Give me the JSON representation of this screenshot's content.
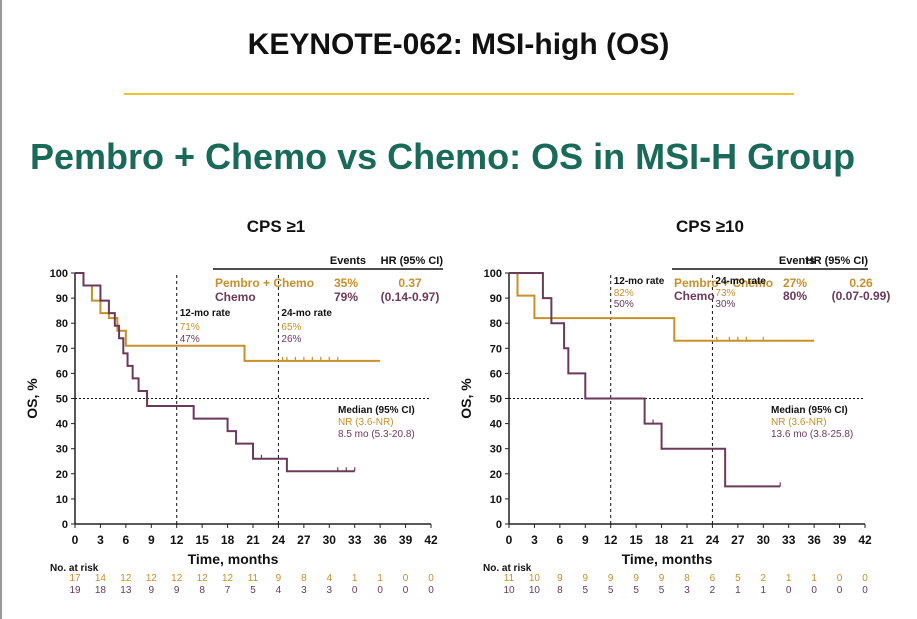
{
  "slide": {
    "title": "KEYNOTE-062: MSI-high (OS)",
    "subtitle": "Pembro + Chemo vs Chemo: OS in MSI-H Group"
  },
  "colors": {
    "pembro_chemo": "#c8902a",
    "chemo": "#6b3a5a",
    "subtitle": "#1a6a5a",
    "rule": "#f2c233"
  },
  "chart_data": [
    {
      "type": "line",
      "subtype": "kaplan-meier",
      "title": "CPS ≥1",
      "xlabel": "Time, months",
      "ylabel": "OS, %",
      "xlim": [
        0,
        42
      ],
      "ylim": [
        0,
        100
      ],
      "x_ticks": [
        0,
        3,
        6,
        9,
        12,
        15,
        18,
        21,
        24,
        27,
        30,
        33,
        36,
        39,
        42
      ],
      "y_ticks": [
        0,
        10,
        20,
        30,
        40,
        50,
        60,
        70,
        80,
        90,
        100
      ],
      "grid": false,
      "reference_lines": {
        "median_y": 50,
        "landmark_x": [
          12,
          24
        ]
      },
      "legend_header": {
        "events": "Events",
        "hr": "HR (95% CI)"
      },
      "series": [
        {
          "name": "Pembro + Chemo",
          "color": "#c8902a",
          "events": "35%",
          "hr": "0.37",
          "hr_ci": "",
          "median": "NR (3.6-NR)",
          "x": [
            0,
            1,
            2,
            3,
            4,
            5,
            6,
            20,
            36
          ],
          "y": [
            100,
            95,
            89,
            84,
            82,
            77,
            71,
            65,
            65
          ],
          "censor_x": [
            24.5,
            25,
            26,
            27,
            28,
            29,
            30,
            31
          ]
        },
        {
          "name": "Chemo",
          "color": "#6b3a5a",
          "events": "79%",
          "hr": "",
          "hr_ci": "(0.14-0.97)",
          "median": "8.5 mo (5.3-20.8)",
          "x": [
            0,
            1,
            3,
            4,
            4.7,
            5.2,
            5.7,
            6.2,
            6.8,
            7.5,
            8.5,
            12,
            14,
            18,
            19,
            21,
            25,
            33
          ],
          "y": [
            100,
            95,
            89,
            84,
            79,
            74,
            68,
            63,
            58,
            53,
            47,
            47,
            42,
            37,
            32,
            26,
            21,
            21
          ],
          "censor_x": [
            22,
            31,
            32,
            33
          ]
        }
      ],
      "landmarks": [
        {
          "x": 12,
          "label": "12-mo rate",
          "values": [
            "71%",
            "47%"
          ]
        },
        {
          "x": 24,
          "label": "24-mo rate",
          "values": [
            "65%",
            "26%"
          ]
        }
      ],
      "median_label": "Median (95% CI)",
      "risk_table": {
        "label": "No. at risk",
        "rows": [
          [
            "17",
            "14",
            "12",
            "12",
            "12",
            "12",
            "12",
            "11",
            "9",
            "8",
            "4",
            "1",
            "1",
            "0",
            "0"
          ],
          [
            "19",
            "18",
            "13",
            "9",
            "9",
            "8",
            "7",
            "5",
            "4",
            "3",
            "3",
            "0",
            "0",
            "0",
            "0"
          ]
        ]
      }
    },
    {
      "type": "line",
      "subtype": "kaplan-meier",
      "title": "CPS ≥10",
      "xlabel": "Time, months",
      "ylabel": "OS, %",
      "xlim": [
        0,
        42
      ],
      "ylim": [
        0,
        100
      ],
      "x_ticks": [
        0,
        3,
        6,
        9,
        12,
        15,
        18,
        21,
        24,
        27,
        30,
        33,
        36,
        39,
        42
      ],
      "y_ticks": [
        0,
        10,
        20,
        30,
        40,
        50,
        60,
        70,
        80,
        90,
        100
      ],
      "grid": false,
      "reference_lines": {
        "median_y": 50,
        "landmark_x": [
          12,
          24
        ]
      },
      "legend_header": {
        "events": "Events",
        "hr": "HR (95% CI)"
      },
      "series": [
        {
          "name": "Pembro + Chemo",
          "color": "#c8902a",
          "events": "27%",
          "hr": "0.26",
          "hr_ci": "",
          "median": "NR (3.6-NR)",
          "x": [
            0,
            1,
            3,
            19.5,
            36
          ],
          "y": [
            100,
            91,
            82,
            73,
            73
          ],
          "censor_x": [
            24.5,
            26,
            27,
            28,
            30
          ]
        },
        {
          "name": "Chemo",
          "color": "#6b3a5a",
          "events": "80%",
          "hr": "",
          "hr_ci": "(0.07-0.99)",
          "median": "13.6 mo (3.8-25.8)",
          "x": [
            0,
            4,
            5,
            6.5,
            7,
            8.5,
            9,
            13,
            13.5,
            15,
            16,
            18,
            24,
            25.5,
            32
          ],
          "y": [
            100,
            90,
            80,
            70,
            60,
            60,
            50,
            50,
            50,
            50,
            40,
            30,
            30,
            15,
            15
          ],
          "censor_x": [
            17,
            32
          ]
        }
      ],
      "landmarks": [
        {
          "x": 12,
          "label": "12-mo rate",
          "values": [
            "82%",
            "50%"
          ]
        },
        {
          "x": 24,
          "label": "24-mo rate",
          "values": [
            "73%",
            "30%"
          ]
        }
      ],
      "median_label": "Median (95% CI)",
      "risk_table": {
        "label": "No. at risk",
        "rows": [
          [
            "11",
            "10",
            "9",
            "9",
            "9",
            "9",
            "9",
            "8",
            "6",
            "5",
            "2",
            "1",
            "1",
            "0",
            "0"
          ],
          [
            "10",
            "10",
            "8",
            "5",
            "5",
            "5",
            "5",
            "3",
            "2",
            "1",
            "1",
            "0",
            "0",
            "0",
            "0"
          ]
        ]
      }
    }
  ]
}
